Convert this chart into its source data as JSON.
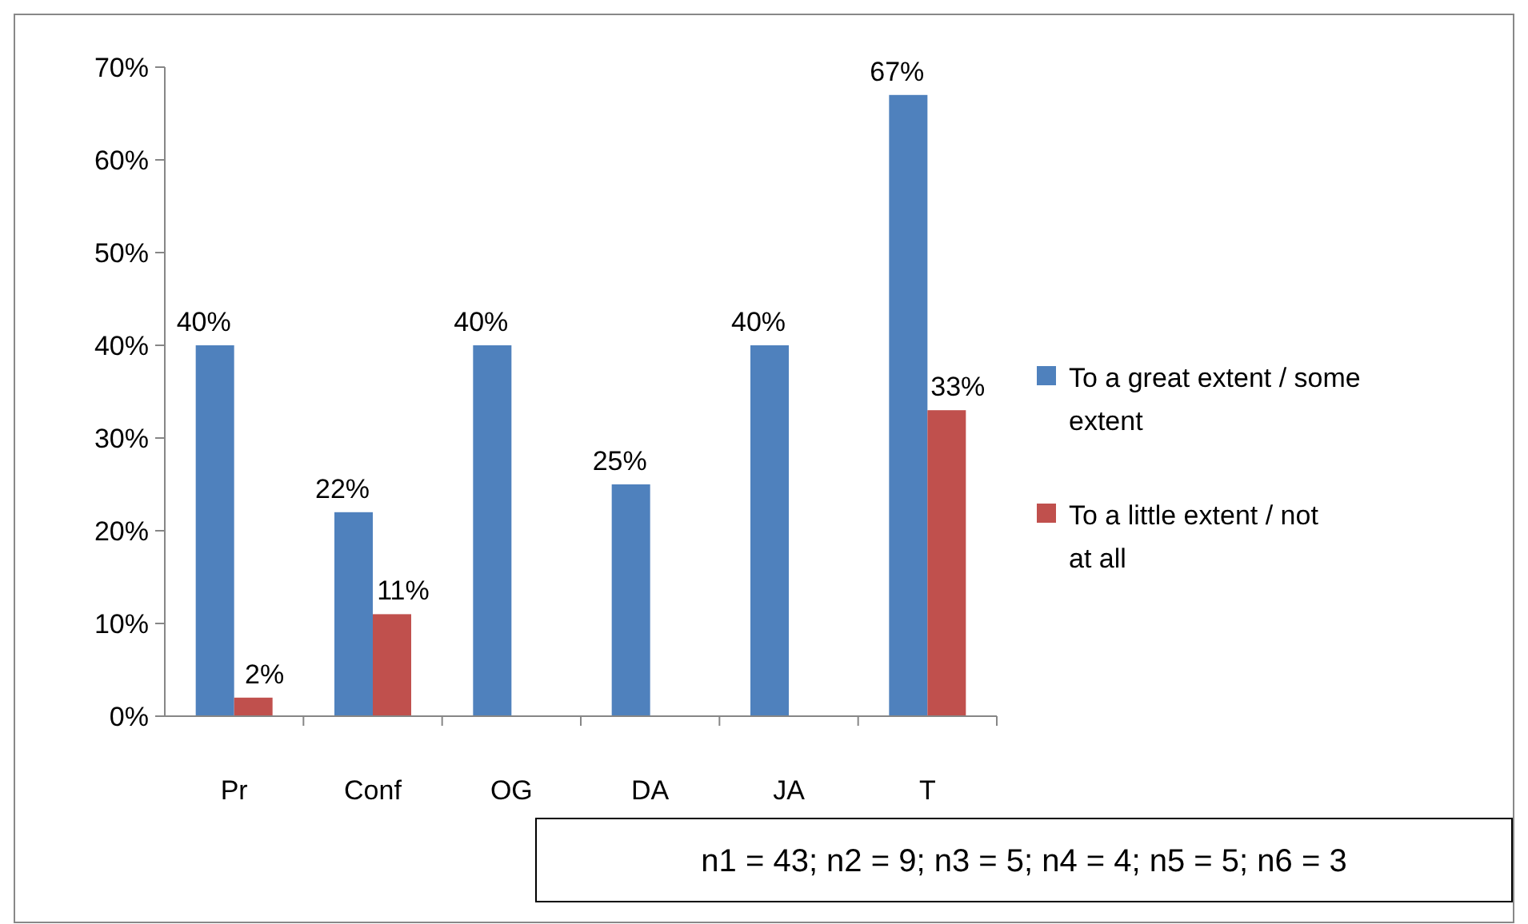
{
  "chart_data": {
    "type": "bar",
    "categories": [
      "Pr",
      "Conf",
      "OG",
      "DA",
      "JA",
      "T"
    ],
    "series": [
      {
        "name": "To a great extent / some extent",
        "color": "#4f81bd",
        "values": [
          40,
          22,
          40,
          25,
          40,
          67
        ],
        "value_labels": [
          "40%",
          "22%",
          "40%",
          "25%",
          "40%",
          "67%"
        ]
      },
      {
        "name": "To a little extent / not at all",
        "color": "#c0504d",
        "values": [
          2,
          11,
          null,
          null,
          null,
          33
        ],
        "value_labels": [
          "2%",
          "11%",
          null,
          null,
          null,
          "33%"
        ]
      }
    ],
    "ylim": [
      0,
      70
    ],
    "yticks": [
      {
        "value": 0,
        "label": "0%"
      },
      {
        "value": 10,
        "label": "10%"
      },
      {
        "value": 20,
        "label": "20%"
      },
      {
        "value": 30,
        "label": "30%"
      },
      {
        "value": 40,
        "label": "40%"
      },
      {
        "value": 50,
        "label": "50%"
      },
      {
        "value": 60,
        "label": "60%"
      },
      {
        "value": 70,
        "label": "70%"
      }
    ],
    "legend": "right",
    "grid": false,
    "annotations": [
      "n1 = 43; n2 = 9; n3 = 5; n4 = 4; n5 = 5; n6 = 3"
    ]
  }
}
